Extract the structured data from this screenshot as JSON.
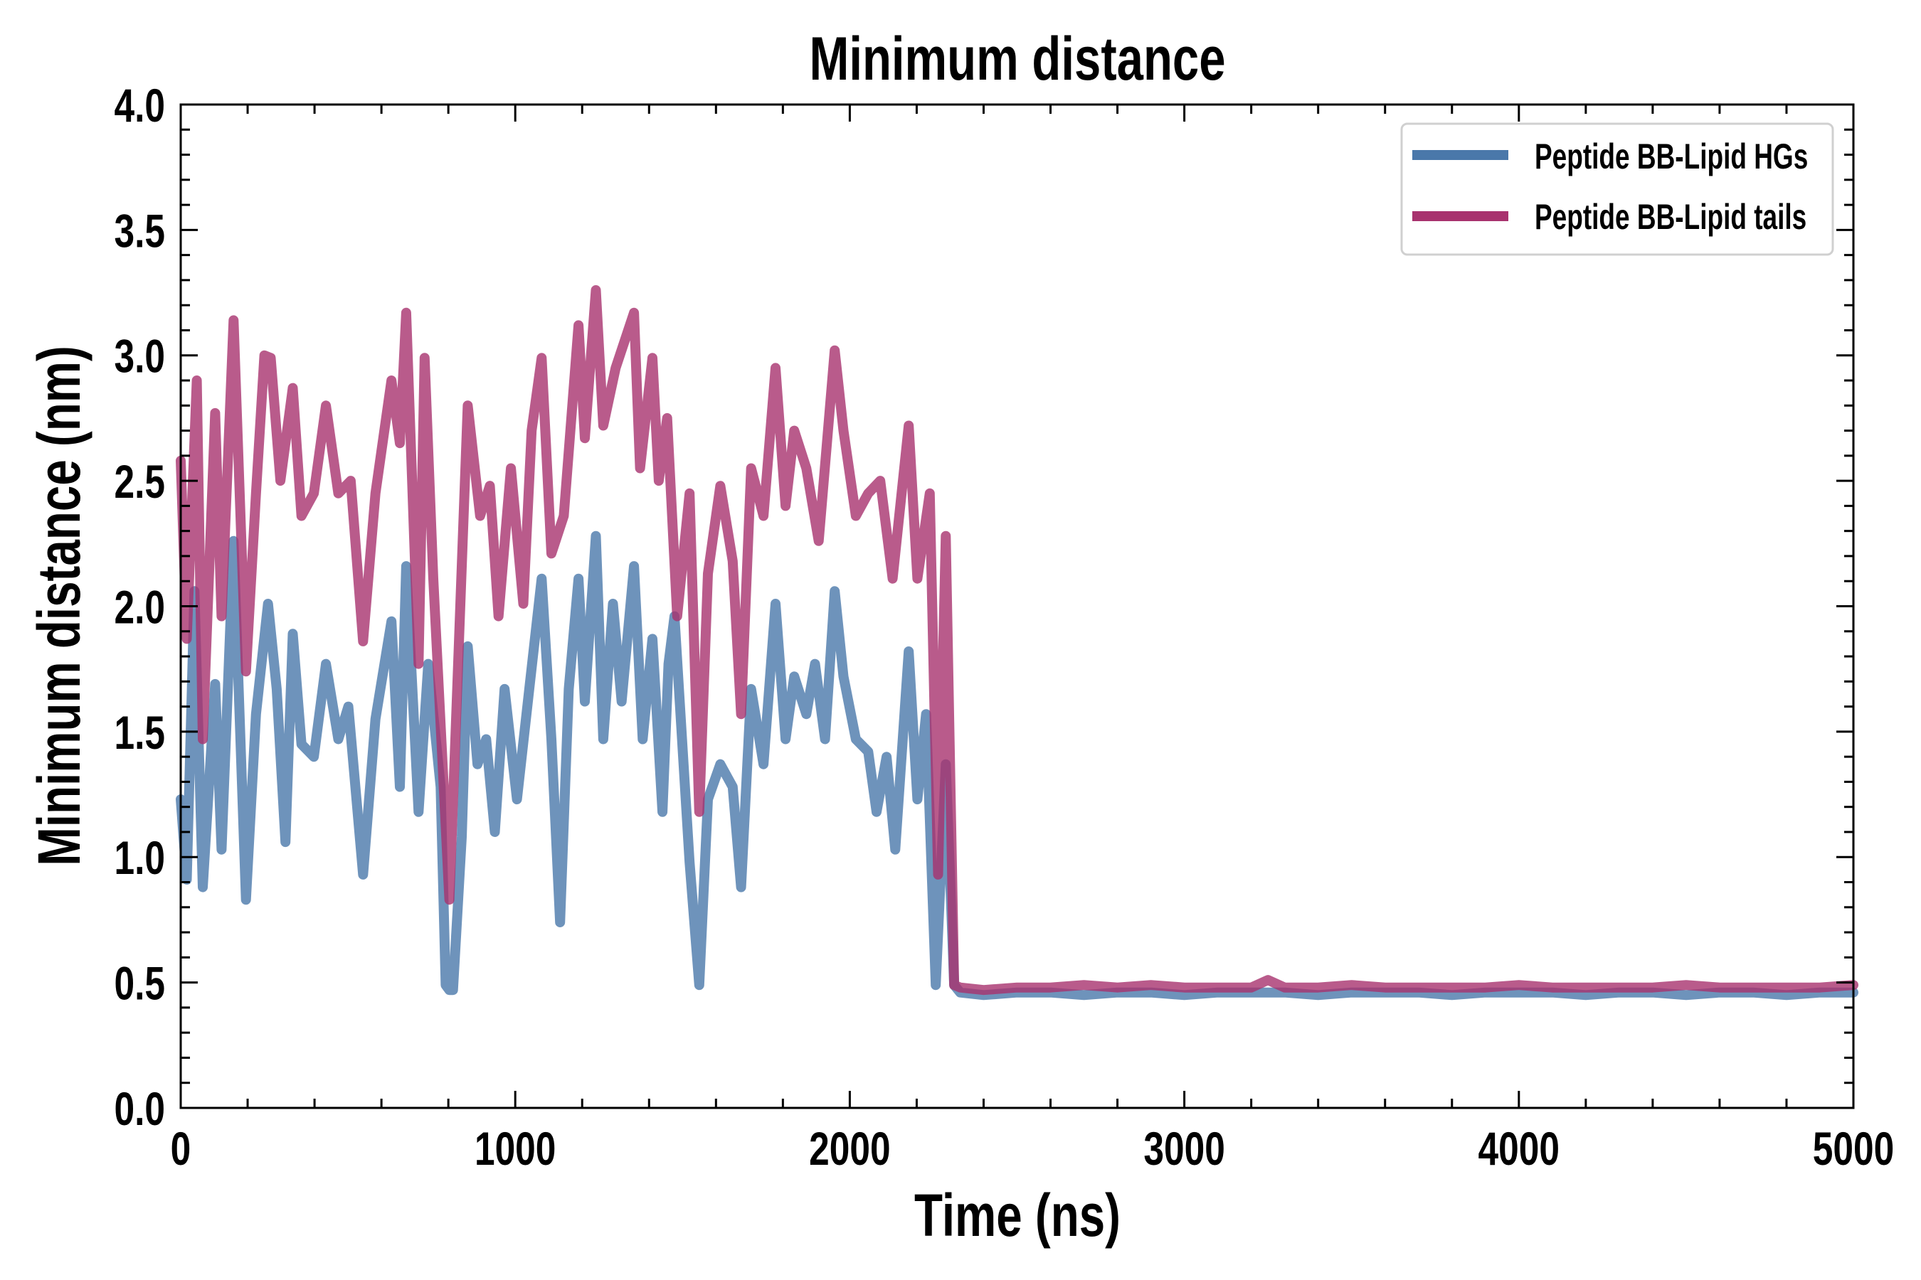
{
  "chart_data": {
    "type": "line",
    "title": "Minimum distance",
    "xlabel": "Time (ns)",
    "ylabel": "Minimum distance (nm)",
    "xlim": [
      0,
      5000
    ],
    "ylim": [
      0.0,
      4.0
    ],
    "xticks": [
      0,
      1000,
      2000,
      3000,
      4000,
      5000
    ],
    "xtick_labels": [
      "0",
      "1000",
      "2000",
      "3000",
      "4000",
      "5000"
    ],
    "yticks": [
      0.0,
      0.5,
      1.0,
      1.5,
      2.0,
      2.5,
      3.0,
      3.5,
      4.0
    ],
    "ytick_labels": [
      "0.0",
      "0.5",
      "1.0",
      "1.5",
      "2.0",
      "2.5",
      "3.0",
      "3.5",
      "4.0"
    ],
    "x_minor_step": 200,
    "y_minor_step": 0.1,
    "grid": false,
    "legend_position": "top-right",
    "series": [
      {
        "name": "Peptide BB-Lipid HGs",
        "color": "#4a78aa",
        "x": [
          0,
          18,
          41,
          66,
          103,
          122,
          158,
          195,
          225,
          261,
          287,
          313,
          335,
          361,
          398,
          434,
          471,
          501,
          545,
          582,
          630,
          655,
          674,
          711,
          740,
          777,
          792,
          803,
          814,
          840,
          858,
          887,
          913,
          939,
          968,
          1005,
          1042,
          1079,
          1108,
          1134,
          1160,
          1189,
          1208,
          1241,
          1263,
          1292,
          1318,
          1355,
          1381,
          1410,
          1440,
          1458,
          1476,
          1521,
          1550,
          1576,
          1613,
          1650,
          1675,
          1705,
          1742,
          1778,
          1808,
          1834,
          1870,
          1896,
          1926,
          1955,
          1981,
          2018,
          2055,
          2080,
          2110,
          2136,
          2176,
          2202,
          2228,
          2257,
          2287,
          2312,
          2330,
          2400,
          2500,
          2600,
          2700,
          2800,
          2900,
          3000,
          3100,
          3200,
          3300,
          3400,
          3500,
          3600,
          3700,
          3800,
          3900,
          4000,
          4100,
          4200,
          4300,
          4400,
          4500,
          4600,
          4700,
          4800,
          4900,
          5000
        ],
        "y": [
          1.23,
          0.91,
          2.06,
          0.88,
          1.69,
          1.03,
          2.26,
          0.83,
          1.57,
          2.01,
          1.67,
          1.06,
          1.89,
          1.45,
          1.4,
          1.77,
          1.47,
          1.6,
          0.93,
          1.55,
          1.94,
          1.28,
          2.16,
          1.18,
          1.77,
          1.28,
          0.49,
          0.47,
          0.47,
          1.08,
          1.84,
          1.37,
          1.47,
          1.1,
          1.67,
          1.23,
          1.67,
          2.11,
          1.47,
          0.74,
          1.67,
          2.11,
          1.62,
          2.28,
          1.47,
          2.01,
          1.62,
          2.16,
          1.47,
          1.87,
          1.18,
          1.77,
          1.96,
          0.98,
          0.49,
          1.23,
          1.37,
          1.28,
          0.88,
          1.67,
          1.37,
          2.01,
          1.47,
          1.72,
          1.57,
          1.77,
          1.47,
          2.06,
          1.72,
          1.47,
          1.42,
          1.18,
          1.4,
          1.03,
          1.82,
          1.23,
          1.57,
          0.49,
          1.37,
          0.49,
          0.46,
          0.45,
          0.46,
          0.46,
          0.45,
          0.46,
          0.46,
          0.45,
          0.46,
          0.46,
          0.46,
          0.45,
          0.46,
          0.46,
          0.46,
          0.45,
          0.46,
          0.46,
          0.46,
          0.45,
          0.46,
          0.46,
          0.45,
          0.46,
          0.46,
          0.45,
          0.46,
          0.46
        ]
      },
      {
        "name": "Peptide BB-Lipid tails",
        "color": "#a8326e",
        "x": [
          0,
          18,
          48,
          66,
          103,
          122,
          158,
          195,
          225,
          250,
          269,
          298,
          335,
          361,
          398,
          434,
          471,
          508,
          545,
          582,
          630,
          655,
          674,
          711,
          729,
          755,
          803,
          858,
          895,
          924,
          950,
          987,
          1024,
          1049,
          1079,
          1108,
          1145,
          1189,
          1208,
          1241,
          1263,
          1300,
          1355,
          1373,
          1410,
          1429,
          1454,
          1484,
          1521,
          1550,
          1576,
          1613,
          1650,
          1675,
          1705,
          1742,
          1778,
          1808,
          1834,
          1870,
          1907,
          1955,
          1981,
          2018,
          2055,
          2091,
          2128,
          2176,
          2202,
          2239,
          2264,
          2287,
          2312,
          2330,
          2400,
          2500,
          2600,
          2700,
          2800,
          2900,
          3000,
          3100,
          3200,
          3250,
          3300,
          3400,
          3500,
          3600,
          3700,
          3800,
          3900,
          4000,
          4100,
          4200,
          4300,
          4400,
          4500,
          4600,
          4700,
          4800,
          4900,
          5000
        ],
        "y": [
          2.58,
          1.87,
          2.9,
          1.47,
          2.77,
          1.96,
          3.14,
          1.74,
          2.45,
          3.0,
          2.99,
          2.5,
          2.87,
          2.36,
          2.45,
          2.8,
          2.45,
          2.5,
          1.86,
          2.45,
          2.9,
          2.65,
          3.17,
          1.77,
          2.99,
          2.11,
          0.83,
          2.8,
          2.36,
          2.48,
          1.96,
          2.55,
          2.01,
          2.7,
          2.99,
          2.21,
          2.36,
          3.12,
          2.67,
          3.26,
          2.72,
          2.95,
          3.17,
          2.55,
          2.99,
          2.5,
          2.75,
          1.96,
          2.45,
          1.18,
          2.13,
          2.48,
          2.18,
          1.57,
          2.55,
          2.36,
          2.95,
          2.4,
          2.7,
          2.55,
          2.26,
          3.02,
          2.7,
          2.36,
          2.45,
          2.5,
          2.11,
          2.72,
          2.11,
          2.45,
          0.93,
          2.28,
          0.49,
          0.48,
          0.47,
          0.48,
          0.48,
          0.49,
          0.48,
          0.49,
          0.48,
          0.48,
          0.48,
          0.51,
          0.48,
          0.48,
          0.49,
          0.48,
          0.48,
          0.48,
          0.48,
          0.49,
          0.48,
          0.48,
          0.48,
          0.48,
          0.49,
          0.48,
          0.48,
          0.48,
          0.48,
          0.49
        ]
      }
    ]
  }
}
